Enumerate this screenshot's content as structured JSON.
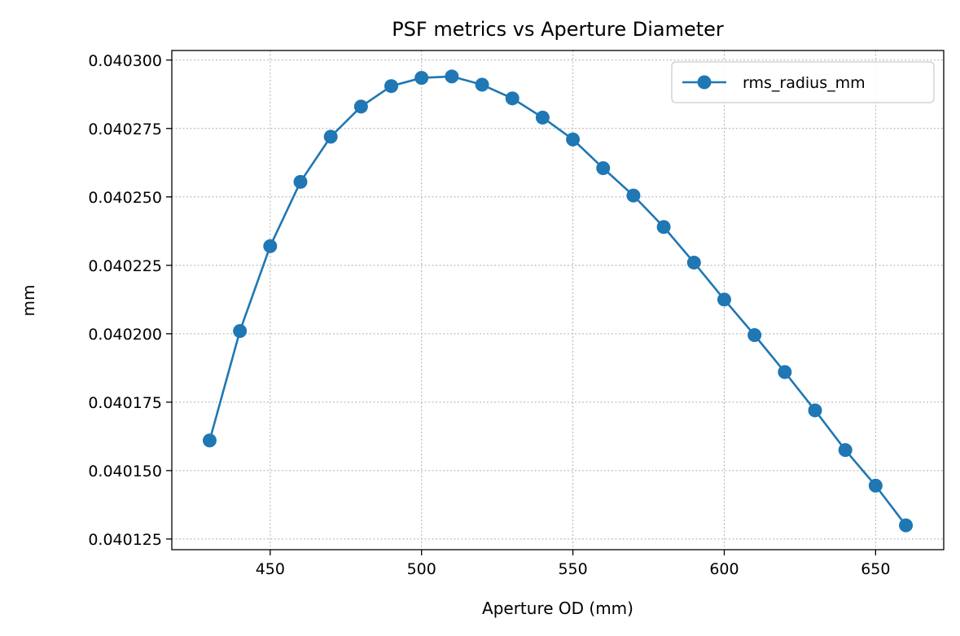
{
  "chart_data": {
    "type": "line",
    "title": "PSF metrics vs Aperture Diameter",
    "xlabel": "Aperture OD (mm)",
    "ylabel": "mm",
    "xlim": [
      417.5,
      672.5
    ],
    "ylim": [
      0.0401211,
      0.0403035
    ],
    "xticks": [
      450,
      500,
      550,
      600,
      650
    ],
    "xtick_labels": [
      "450",
      "500",
      "550",
      "600",
      "650"
    ],
    "yticks": [
      0.040125,
      0.04015,
      0.040175,
      0.0402,
      0.040225,
      0.04025,
      0.040275,
      0.0403
    ],
    "ytick_labels": [
      "0.040125",
      "0.040150",
      "0.040175",
      "0.040200",
      "0.040225",
      "0.040250",
      "0.040275",
      "0.040300"
    ],
    "grid": true,
    "legend_position": "top-right",
    "colors": {
      "series": "#1f77b4"
    },
    "series": [
      {
        "name": "rms_radius_mm",
        "marker": "circle",
        "x": [
          430,
          440,
          450,
          460,
          470,
          480,
          490,
          500,
          510,
          520,
          530,
          540,
          550,
          560,
          570,
          580,
          590,
          600,
          610,
          620,
          630,
          640,
          650,
          660
        ],
        "y": [
          0.040161,
          0.040201,
          0.040232,
          0.0402555,
          0.040272,
          0.040283,
          0.0402905,
          0.0402935,
          0.040294,
          0.040291,
          0.040286,
          0.040279,
          0.040271,
          0.0402605,
          0.0402505,
          0.040239,
          0.040226,
          0.0402125,
          0.0401995,
          0.040186,
          0.040172,
          0.0401575,
          0.0401445,
          0.04013
        ]
      }
    ]
  }
}
